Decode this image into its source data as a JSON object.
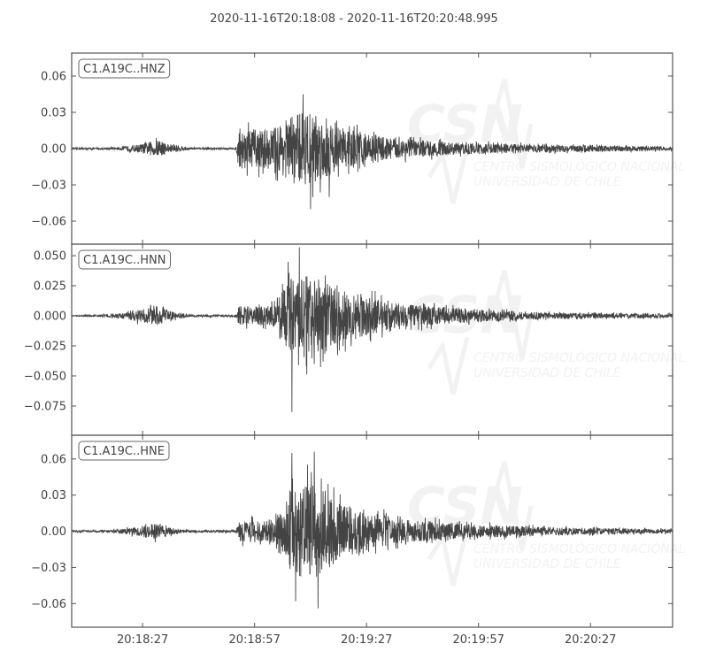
{
  "title": "2020-11-16T20:18:08  -  2020-11-16T20:20:48.995",
  "watermark": {
    "logo": "CSN",
    "line1": "CENTRO SISMOLÓGICO NACIONAL",
    "line2": "UNIVERSIDAD DE CHILE"
  },
  "colors": {
    "trace": "#444444",
    "axes": "#555555",
    "watermark": "#f2f2f2"
  },
  "chart_data": {
    "type": "line",
    "title": "2020-11-16T20:18:08  -  2020-11-16T20:20:48.995",
    "xlim": [
      "20:18:08",
      "20:20:48.995"
    ],
    "x_ticks": [
      "20:18:27",
      "20:18:57",
      "20:19:27",
      "20:19:57",
      "20:20:27"
    ],
    "grid": false,
    "series": [
      {
        "name": "C1.A19C..HNZ",
        "ylim": [
          -0.079,
          0.079
        ],
        "y_ticks": [
          "0.06",
          "0.03",
          "0.00",
          "−0.03",
          "−0.06"
        ],
        "y_tick_values": [
          0.06,
          0.03,
          0.0,
          -0.03,
          -0.06
        ],
        "envelope": [
          [
            "20:18:08",
            0.0008
          ],
          [
            "20:18:20",
            0.001
          ],
          [
            "20:18:26",
            0.004
          ],
          [
            "20:18:31",
            0.008
          ],
          [
            "20:18:35",
            0.004
          ],
          [
            "20:18:40",
            0.001
          ],
          [
            "20:18:52",
            0.001
          ],
          [
            "20:18:53",
            0.018
          ],
          [
            "20:19:02",
            0.02
          ],
          [
            "20:19:08",
            0.035
          ],
          [
            "20:19:13",
            0.035
          ],
          [
            "20:19:20",
            0.02
          ],
          [
            "20:19:35",
            0.01
          ],
          [
            "20:19:50",
            0.006
          ],
          [
            "20:20:10",
            0.004
          ],
          [
            "20:20:48",
            0.002
          ]
        ],
        "peaks": [
          [
            "20:19:10",
            0.045
          ],
          [
            "20:19:12",
            -0.05
          ],
          [
            "20:19:17",
            -0.04
          ]
        ]
      },
      {
        "name": "C1.A19C..HNN",
        "ylim": [
          -0.0993,
          0.0596
        ],
        "y_ticks": [
          "0.050",
          "0.025",
          "0.000",
          "−0.025",
          "−0.050",
          "−0.075"
        ],
        "y_tick_values": [
          0.05,
          0.025,
          0.0,
          -0.025,
          -0.05,
          -0.075
        ],
        "envelope": [
          [
            "20:18:08",
            0.0005
          ],
          [
            "20:18:14",
            0.0008
          ],
          [
            "20:18:20",
            0.002
          ],
          [
            "20:18:26",
            0.006
          ],
          [
            "20:18:31",
            0.009
          ],
          [
            "20:18:36",
            0.003
          ],
          [
            "20:18:40",
            0.001
          ],
          [
            "20:18:52",
            0.001
          ],
          [
            "20:18:53",
            0.009
          ],
          [
            "20:19:02",
            0.01
          ],
          [
            "20:19:06",
            0.035
          ],
          [
            "20:19:12",
            0.04
          ],
          [
            "20:19:20",
            0.025
          ],
          [
            "20:19:35",
            0.012
          ],
          [
            "20:19:55",
            0.006
          ],
          [
            "20:20:15",
            0.003
          ],
          [
            "20:20:48",
            0.002
          ]
        ],
        "peaks": [
          [
            "20:19:06",
            0.045
          ],
          [
            "20:19:09",
            0.057
          ],
          [
            "20:19:07",
            -0.08
          ],
          [
            "20:19:13",
            -0.04
          ]
        ]
      },
      {
        "name": "C1.A19C..HNE",
        "ylim": [
          -0.0796,
          0.0797
        ],
        "y_ticks": [
          "0.06",
          "0.03",
          "0.00",
          "−0.03",
          "−0.06"
        ],
        "y_tick_values": [
          0.06,
          0.03,
          0.0,
          -0.03,
          -0.06
        ],
        "envelope": [
          [
            "20:18:08",
            0.0008
          ],
          [
            "20:18:18",
            0.001
          ],
          [
            "20:18:25",
            0.004
          ],
          [
            "20:18:30",
            0.008
          ],
          [
            "20:18:35",
            0.003
          ],
          [
            "20:18:40",
            0.001
          ],
          [
            "20:18:52",
            0.001
          ],
          [
            "20:18:53",
            0.01
          ],
          [
            "20:19:03",
            0.012
          ],
          [
            "20:19:07",
            0.045
          ],
          [
            "20:19:14",
            0.045
          ],
          [
            "20:19:22",
            0.025
          ],
          [
            "20:19:35",
            0.012
          ],
          [
            "20:19:55",
            0.007
          ],
          [
            "20:20:15",
            0.004
          ],
          [
            "20:20:48",
            0.002
          ]
        ],
        "peaks": [
          [
            "20:19:07",
            0.065
          ],
          [
            "20:19:13",
            0.066
          ],
          [
            "20:19:08",
            -0.058
          ],
          [
            "20:19:14",
            -0.064
          ]
        ]
      }
    ]
  }
}
